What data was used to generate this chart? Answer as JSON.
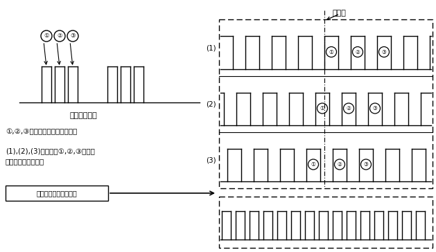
{
  "bg_color": "#ffffff",
  "text_color": "#000000",
  "fig_width": 6.29,
  "fig_height": 3.64,
  "dpi": 100,
  "title_text": "触发点",
  "label_pulse_seq": "一组脉冲序列",
  "text_line1": "①,②,③分别表示不同的触发点。",
  "text_line2a": "(1),(2),(3)分别对应①,②,③不同触",
  "text_line2b": "发点所采集的波形。",
  "label_normal": "正常触发的显示效果图",
  "row_labels": [
    "(1)",
    "(2)",
    "(3)"
  ],
  "circle_labels": [
    "①",
    "②",
    "③"
  ]
}
